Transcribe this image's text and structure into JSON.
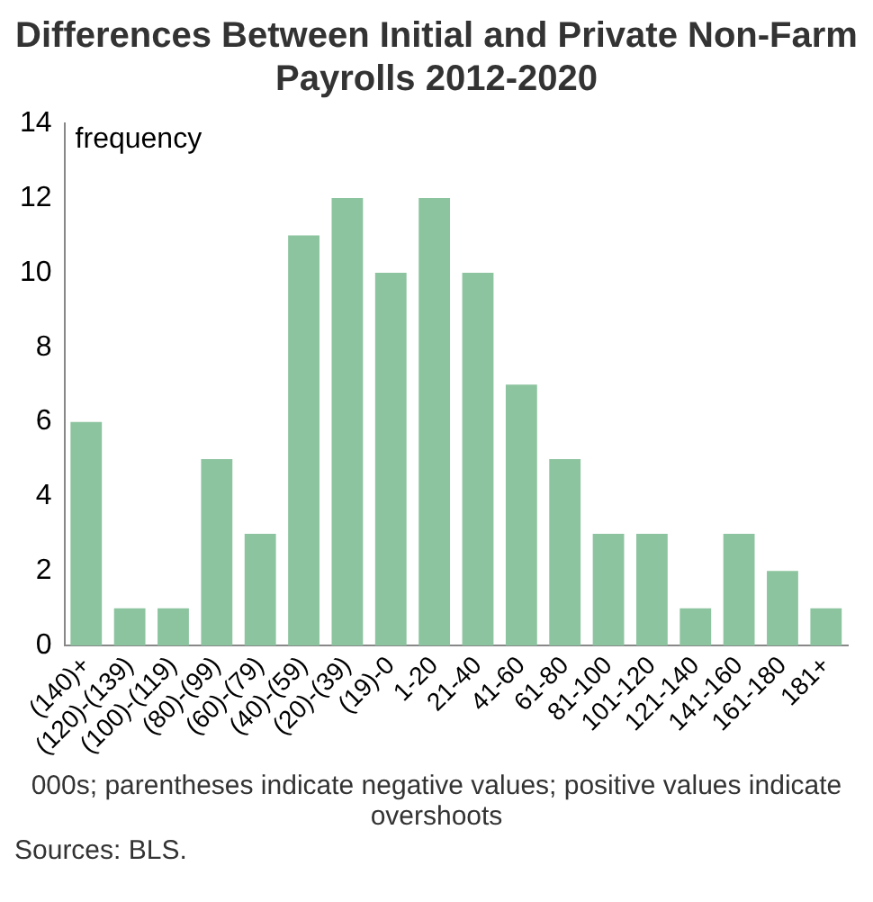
{
  "chart_data": {
    "type": "bar",
    "title": "Differences Between Initial and Private Non-Farm Payrolls 2012-2020",
    "ylabel": "frequency",
    "categories": [
      "(140)+",
      "(120)-(139)",
      "(100)-(119)",
      "(80)-(99)",
      "(60)-(79)",
      "(40)-(59)",
      "(20)-(39)",
      "(19)-0",
      "1-20",
      "21-40",
      "41-60",
      "61-80",
      "81-100",
      "101-120",
      "121-140",
      "141-160",
      "161-180",
      "181+"
    ],
    "values": [
      6,
      1,
      1,
      5,
      3,
      11,
      12,
      10,
      12,
      10,
      7,
      5,
      3,
      3,
      1,
      3,
      2,
      1
    ],
    "color": "#8cc49f",
    "ylim": [
      0,
      14
    ],
    "yticks": [
      0,
      2,
      4,
      6,
      8,
      10,
      12,
      14
    ],
    "grid": false,
    "legend": false,
    "annotations": [
      "000s; parentheses indicate negative values; positive values indicate overshoots",
      "Sources: BLS."
    ]
  }
}
